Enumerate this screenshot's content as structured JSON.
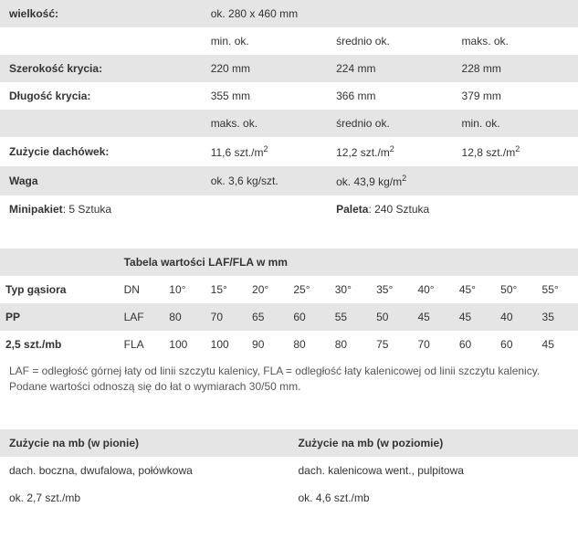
{
  "spec": {
    "rows": [
      {
        "label": "wielkość:",
        "v1": "ok. 280 x 460 mm",
        "v2": "",
        "v3": "",
        "bold": true,
        "bg": "grey",
        "span": 3
      },
      {
        "label": "",
        "v1": "min. ok.",
        "v2": "średnio ok.",
        "v3": "maks. ok.",
        "bold": false,
        "bg": "white"
      },
      {
        "label": "Szerokość krycia:",
        "v1": "220 mm",
        "v2": "224 mm",
        "v3": "228 mm",
        "bold": true,
        "bg": "grey"
      },
      {
        "label": "Długość krycia:",
        "v1": "355 mm",
        "v2": "366 mm",
        "v3": "379 mm",
        "bold": true,
        "bg": "white"
      },
      {
        "label": "",
        "v1": "maks. ok.",
        "v2": "średnio ok.",
        "v3": "min. ok.",
        "bold": false,
        "bg": "grey"
      },
      {
        "label": "Zużycie dachówek:",
        "v1": "11,6 szt./m",
        "v2": "12,2 szt./m",
        "v3": "12,8 szt./m",
        "bold": true,
        "bg": "white",
        "sup": "2"
      }
    ],
    "waga": {
      "label": "Waga",
      "v1": "ok. 3,6 kg/szt.",
      "v2": "ok. 43,9 kg/m",
      "sup": "2"
    },
    "pack": {
      "l1": "Minipakiet",
      "v1": ": 5 Sztuka",
      "l2": "Paleta",
      "v2": ": 240 Sztuka"
    }
  },
  "laf": {
    "title": "Tabela wartości LAF/FLA w mm",
    "header": {
      "c0": "Typ gąsiora",
      "c1": "DN",
      "angles": [
        "10°",
        "15°",
        "20°",
        "25°",
        "30°",
        "35°",
        "40°",
        "45°",
        "50°",
        "55°"
      ]
    },
    "rows": [
      {
        "c0": "PP",
        "c1": "LAF",
        "vals": [
          "80",
          "70",
          "65",
          "60",
          "55",
          "50",
          "45",
          "45",
          "40",
          "35"
        ]
      },
      {
        "c0": "2,5 szt./mb",
        "c1": "FLA",
        "vals": [
          "100",
          "100",
          "90",
          "80",
          "80",
          "75",
          "70",
          "60",
          "60",
          "45"
        ]
      }
    ],
    "note": "LAF = odległość górnej łaty od linii szczytu kalenicy, FLA = odległość łaty kalenicowej od linii szczytu kalenicy. Podane wartości odnoszą się do łat o wymiarach 30/50 mm."
  },
  "usage": {
    "h1": "Zużycie na mb (w pionie)",
    "h2": "Zużycie na mb (w poziomie)",
    "r1c1": "dach. boczna, dwufalowa, połówkowa",
    "r1c2": "dach. kalenicowa went., pulpitowa",
    "r2c1": "ok. 2,7 szt./mb",
    "r2c2": "ok. 4,6 szt./mb"
  }
}
